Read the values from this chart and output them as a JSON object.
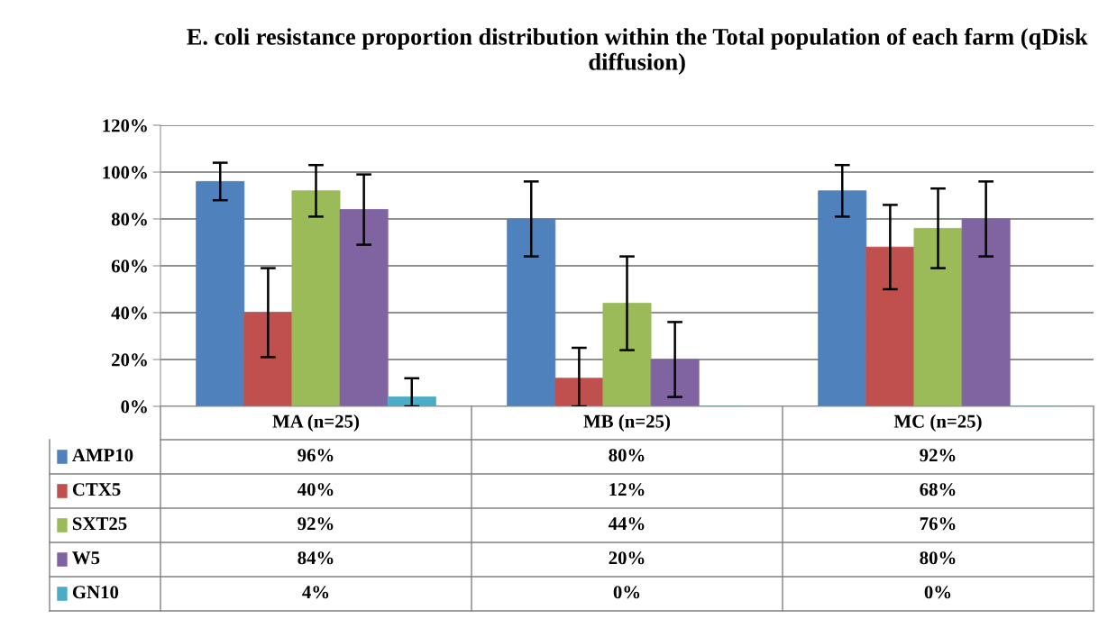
{
  "chart_data": {
    "type": "bar",
    "title": "E. coli resistance proportion distribution within the Total population of each farm (qDisk diffusion)",
    "categories": [
      "MA (n=25)",
      "MB (n=25)",
      "MC (n=25)"
    ],
    "ylim": [
      0,
      120
    ],
    "yticks": [
      {
        "value": 0,
        "label": "0%"
      },
      {
        "value": 20,
        "label": "20%"
      },
      {
        "value": 40,
        "label": "40%"
      },
      {
        "value": 60,
        "label": "60%"
      },
      {
        "value": 80,
        "label": "80%"
      },
      {
        "value": 100,
        "label": "100%"
      },
      {
        "value": 120,
        "label": "120%"
      }
    ],
    "grid": "y",
    "legend": "bottom",
    "series": [
      {
        "name": "AMP10",
        "color": "#4f81bd",
        "values": [
          96,
          80,
          92
        ],
        "errors": [
          8,
          16,
          11
        ],
        "value_labels": [
          "96%",
          "80%",
          "92%"
        ]
      },
      {
        "name": "CTX5",
        "color": "#c0504d",
        "values": [
          40,
          12,
          68
        ],
        "errors": [
          19,
          [
            0,
            25
          ],
          18
        ],
        "value_labels": [
          "40%",
          "12%",
          "68%"
        ]
      },
      {
        "name": "SXT25",
        "color": "#9bbb59",
        "values": [
          92,
          44,
          76
        ],
        "errors": [
          11,
          20,
          17
        ],
        "value_labels": [
          "92%",
          "44%",
          "76%"
        ]
      },
      {
        "name": "W5",
        "color": "#8064a2",
        "values": [
          84,
          20,
          80
        ],
        "errors": [
          15,
          16,
          16
        ],
        "value_labels": [
          "84%",
          "20%",
          "80%"
        ]
      },
      {
        "name": "GN10",
        "color": "#4bacc6",
        "values": [
          4,
          0,
          0
        ],
        "errors": [
          [
            0,
            12
          ],
          null,
          null
        ],
        "value_labels": [
          "4%",
          "0%",
          "0%"
        ]
      }
    ]
  }
}
